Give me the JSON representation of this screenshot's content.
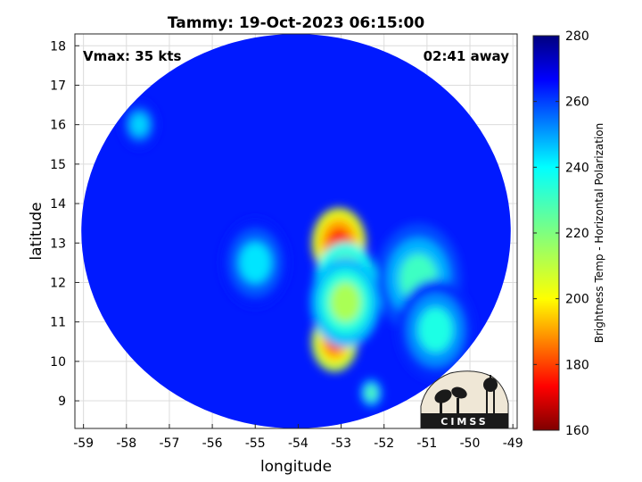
{
  "chart_data": {
    "type": "heatmap",
    "title": "Tammy: 19-Oct-2023 06:15:00",
    "xlabel": "longitude",
    "ylabel": "latitude",
    "xlim": [
      -59.2,
      -48.9
    ],
    "ylim": [
      8.3,
      18.3
    ],
    "xticks": [
      -59,
      -58,
      -57,
      -56,
      -55,
      -54,
      -53,
      -52,
      -51,
      -50,
      -49
    ],
    "yticks": [
      9,
      10,
      11,
      12,
      13,
      14,
      15,
      16,
      17,
      18
    ],
    "grid": true,
    "annotations": {
      "left": "Vmax: 35 kts",
      "right": "02:41 away"
    },
    "swath": {
      "center_lon": -54.05,
      "center_lat": 13.3,
      "radius_deg": 5.0
    },
    "background_value": 262,
    "features": [
      {
        "lon": -53.05,
        "lat": 13.0,
        "value": 180,
        "extent_deg": 0.7
      },
      {
        "lon": -53.15,
        "lat": 10.5,
        "value": 185,
        "extent_deg": 0.6
      },
      {
        "lon": -52.9,
        "lat": 12.0,
        "value": 205,
        "extent_deg": 0.8
      },
      {
        "lon": -52.9,
        "lat": 11.5,
        "value": 215,
        "extent_deg": 0.9
      },
      {
        "lon": -51.2,
        "lat": 12.1,
        "value": 228,
        "extent_deg": 1.1
      },
      {
        "lon": -50.8,
        "lat": 10.8,
        "value": 232,
        "extent_deg": 1.0
      },
      {
        "lon": -52.3,
        "lat": 9.2,
        "value": 225,
        "extent_deg": 0.3
      },
      {
        "lon": -55.0,
        "lat": 12.5,
        "value": 238,
        "extent_deg": 0.9
      },
      {
        "lon": -57.7,
        "lat": 16.0,
        "value": 240,
        "extent_deg": 0.5
      }
    ],
    "colorbar": {
      "label": "Brightness Temp - Horizontal Polarization",
      "min": 160,
      "max": 280,
      "ticks": [
        160,
        180,
        200,
        220,
        240,
        260,
        280
      ],
      "colormap": "jet"
    }
  },
  "logo": {
    "text": "CIMSS"
  }
}
